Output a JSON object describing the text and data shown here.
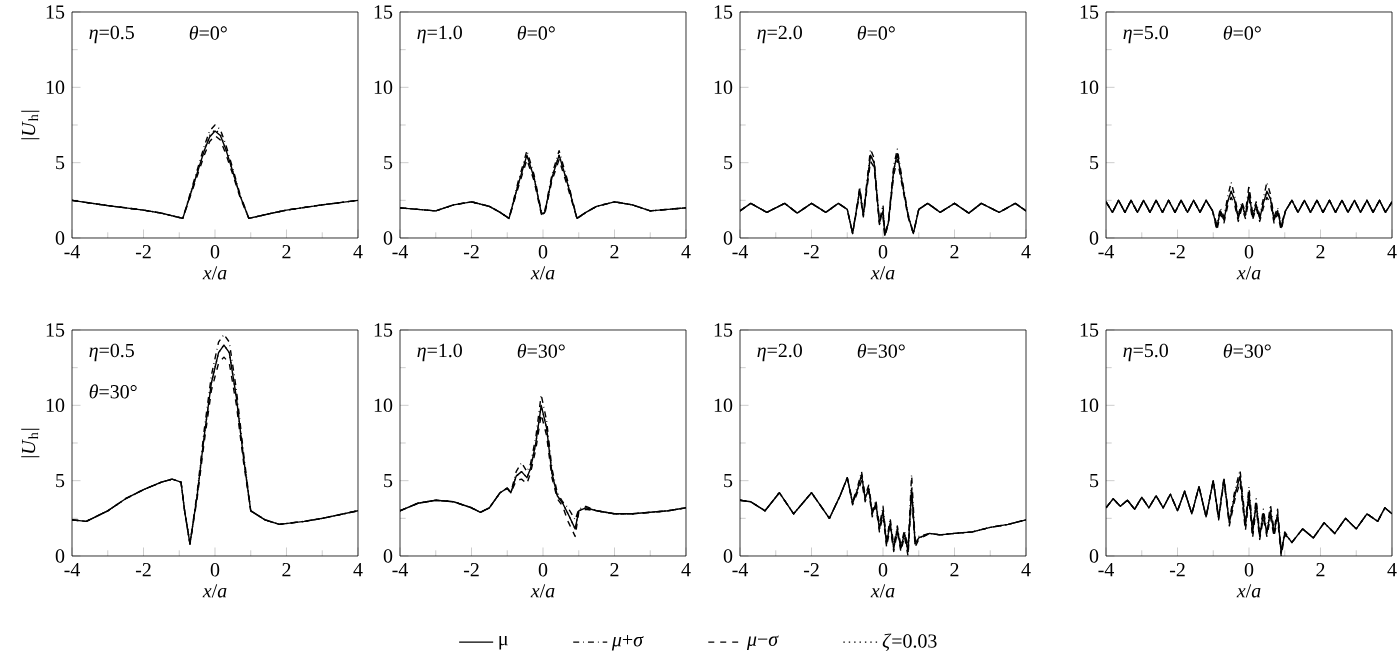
{
  "chart_data": [
    {
      "type": "line",
      "annotations": [
        "*η*=0.5",
        "*θ*=0°"
      ],
      "xlabel": "*x*/*a*",
      "ylabel": "|*U*$_{h}$|",
      "xlim": [
        -4,
        4
      ],
      "ylim": [
        0,
        15
      ],
      "xticks": [
        -4,
        -2,
        0,
        2,
        4
      ],
      "yticks": [
        0,
        5,
        10,
        15
      ],
      "x": [
        -4,
        -3,
        -2,
        -1.5,
        -0.9,
        -0.7,
        -0.5,
        -0.3,
        -0.15,
        0,
        0.15,
        0.3,
        0.5,
        0.7,
        0.95,
        1.5,
        2,
        3,
        4
      ],
      "series": [
        {
          "color": "#000000",
          "line_style": "solid",
          "values": [
            2.5,
            2.15,
            1.85,
            1.65,
            1.3,
            2.8,
            4.3,
            5.8,
            6.7,
            7.1,
            6.8,
            5.9,
            4.4,
            2.8,
            1.3,
            1.6,
            1.85,
            2.2,
            2.5
          ]
        },
        {
          "color": "#000000",
          "line_style": "dashdot",
          "values": [
            2.5,
            2.15,
            1.85,
            1.65,
            1.3,
            2.9,
            4.5,
            6.1,
            7.1,
            7.5,
            7.2,
            6.2,
            4.6,
            2.9,
            1.3,
            1.6,
            1.85,
            2.2,
            2.5
          ]
        },
        {
          "color": "#000000",
          "line_style": "dashed",
          "values": [
            2.5,
            2.15,
            1.85,
            1.65,
            1.3,
            2.7,
            4.1,
            5.5,
            6.4,
            6.8,
            6.5,
            5.6,
            4.2,
            2.7,
            1.3,
            1.6,
            1.85,
            2.2,
            2.5
          ]
        },
        {
          "color": "#000000",
          "line_style": "dotted",
          "values": [
            2.5,
            2.15,
            1.85,
            1.65,
            1.3,
            2.8,
            4.3,
            5.8,
            6.8,
            7.2,
            6.9,
            5.9,
            4.4,
            2.8,
            1.3,
            1.6,
            1.85,
            2.2,
            2.5
          ]
        }
      ]
    },
    {
      "type": "line",
      "annotations": [
        "*η*=1.0",
        "*θ*=0°"
      ],
      "xlabel": "*x*/*a*",
      "xlim": [
        -4,
        4
      ],
      "ylim": [
        0,
        15
      ],
      "xticks": [
        -4,
        -2,
        0,
        2,
        4
      ],
      "yticks": [
        0,
        5,
        10,
        15
      ],
      "x": [
        -4,
        -3.5,
        -3,
        -2.5,
        -2,
        -1.5,
        -1.2,
        -0.95,
        -0.7,
        -0.45,
        -0.25,
        -0.05,
        0,
        0.05,
        0.25,
        0.45,
        0.7,
        0.95,
        1.2,
        1.5,
        2,
        2.5,
        3,
        3.5,
        4
      ],
      "series": [
        {
          "color": "#000000",
          "line_style": "solid",
          "values": [
            2.0,
            1.9,
            1.8,
            2.2,
            2.4,
            2.1,
            1.7,
            1.3,
            3.5,
            5.5,
            4.0,
            1.7,
            1.6,
            1.7,
            4.0,
            5.5,
            3.5,
            1.3,
            1.7,
            2.1,
            2.4,
            2.2,
            1.8,
            1.9,
            2.0
          ]
        },
        {
          "color": "#000000",
          "line_style": "dashdot",
          "values": [
            2.0,
            1.9,
            1.8,
            2.2,
            2.4,
            2.1,
            1.7,
            1.3,
            3.7,
            5.8,
            4.2,
            1.8,
            1.7,
            1.8,
            4.2,
            5.8,
            3.7,
            1.3,
            1.7,
            2.1,
            2.4,
            2.2,
            1.8,
            1.9,
            2.0
          ]
        },
        {
          "color": "#000000",
          "line_style": "dashed",
          "values": [
            2.0,
            1.9,
            1.8,
            2.2,
            2.4,
            2.1,
            1.7,
            1.3,
            3.3,
            5.2,
            3.8,
            1.6,
            1.5,
            1.6,
            3.8,
            5.2,
            3.3,
            1.3,
            1.7,
            2.1,
            2.4,
            2.2,
            1.8,
            1.9,
            2.0
          ]
        },
        {
          "color": "#000000",
          "line_style": "dotted",
          "values": [
            2.0,
            1.9,
            1.8,
            2.2,
            2.4,
            2.1,
            1.7,
            1.3,
            3.5,
            5.5,
            4.0,
            1.7,
            1.6,
            1.7,
            4.0,
            5.5,
            3.5,
            1.3,
            1.7,
            2.1,
            2.4,
            2.2,
            1.8,
            1.9,
            2.0
          ]
        }
      ]
    },
    {
      "type": "line",
      "annotations": [
        "*η*=2.0",
        "*θ*=0°"
      ],
      "xlabel": "*x*/*a*",
      "xlim": [
        -4,
        4
      ],
      "ylim": [
        0,
        15
      ],
      "xticks": [
        -4,
        -2,
        0,
        2,
        4
      ],
      "yticks": [
        0,
        5,
        10,
        15
      ],
      "x": [
        -4,
        -3.7,
        -3.25,
        -2.75,
        -2.4,
        -2,
        -1.6,
        -1.25,
        -1,
        -0.85,
        -0.65,
        -0.55,
        -0.35,
        -0.25,
        -0.1,
        0,
        0.05,
        0.15,
        0.3,
        0.4,
        0.55,
        0.7,
        0.85,
        1,
        1.25,
        1.6,
        2,
        2.4,
        2.75,
        3.25,
        3.7,
        4
      ],
      "series": [
        {
          "color": "#000000",
          "line_style": "solid",
          "values": [
            1.8,
            2.3,
            1.7,
            2.3,
            1.65,
            2.3,
            1.7,
            2.3,
            1.9,
            0.3,
            3.2,
            1.5,
            5.5,
            5.0,
            1.0,
            1.8,
            0.2,
            1.0,
            4.5,
            5.6,
            3.5,
            1.5,
            0.3,
            1.9,
            2.3,
            1.7,
            2.3,
            1.65,
            2.3,
            1.7,
            2.3,
            1.8
          ]
        },
        {
          "color": "#000000",
          "line_style": "dashdot",
          "values": [
            1.8,
            2.3,
            1.7,
            2.3,
            1.65,
            2.3,
            1.7,
            2.3,
            1.9,
            0.3,
            3.4,
            1.6,
            5.9,
            5.3,
            1.1,
            2.2,
            0.3,
            1.1,
            4.8,
            5.9,
            3.7,
            1.6,
            0.3,
            1.9,
            2.3,
            1.7,
            2.3,
            1.65,
            2.3,
            1.7,
            2.3,
            1.8
          ]
        },
        {
          "color": "#000000",
          "line_style": "dashed",
          "values": [
            1.8,
            2.3,
            1.7,
            2.3,
            1.65,
            2.3,
            1.7,
            2.3,
            1.9,
            0.3,
            3.0,
            1.4,
            5.1,
            4.7,
            0.9,
            1.4,
            0.1,
            0.9,
            4.2,
            5.2,
            3.3,
            1.4,
            0.3,
            1.9,
            2.3,
            1.7,
            2.3,
            1.65,
            2.3,
            1.7,
            2.3,
            1.8
          ]
        },
        {
          "color": "#000000",
          "line_style": "dotted",
          "values": [
            1.8,
            2.3,
            1.7,
            2.3,
            1.65,
            2.3,
            1.7,
            2.3,
            1.9,
            0.3,
            3.2,
            1.5,
            5.5,
            5.0,
            1.0,
            1.8,
            0.2,
            1.0,
            4.5,
            5.6,
            3.5,
            1.5,
            0.3,
            1.9,
            2.3,
            1.7,
            2.3,
            1.65,
            2.3,
            1.7,
            2.3,
            1.8
          ]
        }
      ]
    },
    {
      "type": "line",
      "annotations": [
        "*η*=5.0",
        "*θ*=0°"
      ],
      "xlabel": "*x*/*a*",
      "xlim": [
        -4,
        4
      ],
      "ylim": [
        0,
        15
      ],
      "xticks": [
        -4,
        -2,
        0,
        2,
        4
      ],
      "yticks": [
        0,
        5,
        10,
        15
      ],
      "x": [
        -4,
        -3.82,
        -3.65,
        -3.47,
        -3.3,
        -3.12,
        -2.95,
        -2.77,
        -2.6,
        -2.42,
        -2.25,
        -2.07,
        -1.9,
        -1.72,
        -1.55,
        -1.37,
        -1.2,
        -1.02,
        -0.9,
        -0.8,
        -0.7,
        -0.6,
        -0.5,
        -0.4,
        -0.3,
        -0.2,
        -0.1,
        0,
        0.1,
        0.2,
        0.3,
        0.4,
        0.5,
        0.6,
        0.7,
        0.8,
        0.9,
        1.02,
        1.2,
        1.37,
        1.55,
        1.72,
        1.9,
        2.07,
        2.25,
        2.42,
        2.6,
        2.77,
        2.95,
        3.12,
        3.3,
        3.47,
        3.65,
        3.82,
        4
      ],
      "series": [
        {
          "color": "#000000",
          "line_style": "solid",
          "values": [
            2.4,
            1.7,
            2.5,
            1.7,
            2.5,
            1.7,
            2.5,
            1.7,
            2.5,
            1.7,
            2.5,
            1.7,
            2.5,
            1.7,
            2.5,
            1.7,
            2.5,
            1.8,
            0.7,
            1.8,
            1.2,
            2.4,
            3.1,
            2.5,
            1.3,
            2.2,
            1.5,
            3.0,
            1.4,
            2.2,
            1.3,
            2.3,
            3.1,
            2.6,
            1.2,
            1.8,
            0.7,
            1.8,
            2.5,
            1.7,
            2.5,
            1.7,
            2.5,
            1.7,
            2.5,
            1.7,
            2.5,
            1.7,
            2.5,
            1.7,
            2.5,
            1.7,
            2.5,
            1.7,
            2.4
          ]
        },
        {
          "color": "#000000",
          "line_style": "dashdot",
          "values": [
            2.4,
            1.7,
            2.5,
            1.7,
            2.5,
            1.7,
            2.5,
            1.7,
            2.5,
            1.7,
            2.5,
            1.7,
            2.5,
            1.7,
            2.5,
            1.7,
            2.5,
            1.8,
            0.9,
            2.0,
            1.4,
            2.7,
            3.7,
            2.8,
            1.5,
            2.4,
            1.7,
            3.5,
            1.6,
            2.4,
            1.5,
            2.6,
            3.7,
            2.9,
            1.4,
            2.0,
            0.9,
            1.8,
            2.5,
            1.7,
            2.5,
            1.7,
            2.5,
            1.7,
            2.5,
            1.7,
            2.5,
            1.7,
            2.5,
            1.7,
            2.5,
            1.7,
            2.5,
            1.7,
            2.4
          ]
        },
        {
          "color": "#000000",
          "line_style": "dashed",
          "values": [
            2.4,
            1.7,
            2.5,
            1.7,
            2.5,
            1.7,
            2.5,
            1.7,
            2.5,
            1.7,
            2.5,
            1.7,
            2.5,
            1.7,
            2.5,
            1.7,
            2.5,
            1.8,
            0.5,
            1.6,
            1.0,
            2.1,
            2.7,
            2.2,
            1.1,
            2.0,
            1.3,
            2.6,
            1.2,
            2.0,
            1.1,
            2.0,
            2.7,
            2.3,
            1.0,
            1.6,
            0.5,
            1.8,
            2.5,
            1.7,
            2.5,
            1.7,
            2.5,
            1.7,
            2.5,
            1.7,
            2.5,
            1.7,
            2.5,
            1.7,
            2.5,
            1.7,
            2.5,
            1.7,
            2.4
          ]
        },
        {
          "color": "#000000",
          "line_style": "dotted",
          "values": [
            2.4,
            1.7,
            2.5,
            1.7,
            2.5,
            1.7,
            2.5,
            1.7,
            2.5,
            1.7,
            2.5,
            1.7,
            2.5,
            1.7,
            2.5,
            1.7,
            2.5,
            1.8,
            0.7,
            1.8,
            1.2,
            2.4,
            3.1,
            2.5,
            1.3,
            2.2,
            1.5,
            3.0,
            1.4,
            2.2,
            1.3,
            2.3,
            3.1,
            2.6,
            1.2,
            1.8,
            0.7,
            1.8,
            2.5,
            1.7,
            2.5,
            1.7,
            2.5,
            1.7,
            2.5,
            1.7,
            2.5,
            1.7,
            2.5,
            1.7,
            2.5,
            1.7,
            2.5,
            1.7,
            2.4
          ]
        }
      ]
    },
    {
      "type": "line",
      "annotations": [
        "*η*=0.5",
        "*θ*=30°"
      ],
      "xlabel": "*x*/*a*",
      "ylabel": "|*U*$_{h}$|",
      "xlim": [
        -4,
        4
      ],
      "ylim": [
        0,
        15
      ],
      "xticks": [
        -4,
        -2,
        0,
        2,
        4
      ],
      "yticks": [
        0,
        5,
        10,
        15
      ],
      "x": [
        -4,
        -3.6,
        -3,
        -2.5,
        -2,
        -1.5,
        -1.2,
        -0.95,
        -0.85,
        -0.7,
        -0.5,
        -0.3,
        -0.1,
        0.1,
        0.25,
        0.4,
        0.6,
        0.8,
        1,
        1.4,
        1.8,
        2.5,
        3,
        3.5,
        4
      ],
      "series": [
        {
          "color": "#000000",
          "line_style": "solid",
          "values": [
            2.4,
            2.3,
            3.0,
            3.8,
            4.4,
            4.9,
            5.1,
            4.9,
            3.0,
            0.8,
            4.0,
            8.0,
            11.5,
            13.5,
            14.0,
            13.5,
            10.5,
            6.5,
            3.0,
            2.4,
            2.1,
            2.3,
            2.5,
            2.75,
            3.0
          ]
        },
        {
          "color": "#000000",
          "line_style": "dashdot",
          "values": [
            2.4,
            2.3,
            3.0,
            3.8,
            4.4,
            4.9,
            5.1,
            4.9,
            3.0,
            0.8,
            4.2,
            8.4,
            12.0,
            14.2,
            14.7,
            14.2,
            11.0,
            6.8,
            3.0,
            2.4,
            2.1,
            2.3,
            2.5,
            2.75,
            3.0
          ]
        },
        {
          "color": "#000000",
          "line_style": "dashed",
          "values": [
            2.4,
            2.3,
            3.0,
            3.8,
            4.4,
            4.9,
            5.1,
            4.9,
            3.0,
            0.8,
            3.8,
            7.6,
            11.0,
            12.8,
            13.2,
            12.8,
            10.0,
            6.2,
            3.0,
            2.4,
            2.1,
            2.3,
            2.5,
            2.75,
            3.0
          ]
        },
        {
          "color": "#000000",
          "line_style": "dotted",
          "values": [
            2.4,
            2.3,
            3.0,
            3.8,
            4.4,
            4.9,
            5.1,
            4.9,
            3.0,
            0.8,
            4.0,
            8.0,
            11.5,
            13.5,
            14.0,
            13.5,
            10.5,
            6.5,
            3.0,
            2.4,
            2.1,
            2.3,
            2.5,
            2.75,
            3.0
          ]
        }
      ]
    },
    {
      "type": "line",
      "annotations": [
        "*η*=1.0",
        "*θ*=30°"
      ],
      "xlabel": "*x*/*a*",
      "xlim": [
        -4,
        4
      ],
      "ylim": [
        0,
        15
      ],
      "xticks": [
        -4,
        -2,
        0,
        2,
        4
      ],
      "yticks": [
        0,
        5,
        10,
        15
      ],
      "x": [
        -4,
        -3.5,
        -3,
        -2.5,
        -2,
        -1.75,
        -1.5,
        -1.2,
        -1,
        -0.9,
        -0.75,
        -0.6,
        -0.45,
        -0.35,
        -0.2,
        -0.05,
        0.1,
        0.25,
        0.4,
        0.55,
        0.7,
        0.9,
        1,
        1.2,
        1.5,
        2,
        2.5,
        3,
        3.5,
        4
      ],
      "series": [
        {
          "color": "#000000",
          "line_style": "solid",
          "values": [
            3.0,
            3.5,
            3.7,
            3.6,
            3.2,
            2.9,
            3.2,
            4.2,
            4.5,
            4.2,
            5.3,
            5.6,
            5.2,
            5.8,
            7.5,
            10.0,
            8.5,
            5.5,
            4.0,
            3.5,
            2.8,
            1.8,
            3.0,
            3.2,
            3.0,
            2.8,
            2.8,
            2.9,
            3.0,
            3.2
          ]
        },
        {
          "color": "#000000",
          "line_style": "dashdot",
          "values": [
            3.0,
            3.5,
            3.7,
            3.6,
            3.2,
            2.9,
            3.2,
            4.2,
            4.5,
            4.2,
            5.6,
            6.2,
            5.6,
            6.1,
            7.9,
            10.7,
            9.0,
            5.8,
            4.2,
            3.6,
            3.2,
            2.4,
            3.1,
            3.3,
            3.0,
            2.8,
            2.8,
            2.9,
            3.0,
            3.2
          ]
        },
        {
          "color": "#000000",
          "line_style": "dashed",
          "values": [
            3.0,
            3.5,
            3.7,
            3.6,
            3.2,
            2.9,
            3.2,
            4.2,
            4.5,
            4.2,
            5.0,
            5.1,
            4.8,
            5.5,
            7.1,
            9.4,
            8.0,
            5.2,
            3.8,
            3.3,
            2.3,
            1.3,
            2.9,
            3.1,
            3.0,
            2.8,
            2.8,
            2.9,
            3.0,
            3.2
          ]
        },
        {
          "color": "#000000",
          "line_style": "dotted",
          "values": [
            3.0,
            3.5,
            3.7,
            3.6,
            3.2,
            2.9,
            3.2,
            4.2,
            4.5,
            4.2,
            5.3,
            5.6,
            5.2,
            5.8,
            7.5,
            10.0,
            8.5,
            5.5,
            4.0,
            3.5,
            2.8,
            1.8,
            3.0,
            3.2,
            3.0,
            2.8,
            2.8,
            2.9,
            3.0,
            3.2
          ]
        }
      ]
    },
    {
      "type": "line",
      "annotations": [
        "*η*=2.0",
        "*θ*=30°"
      ],
      "xlabel": "*x*/*a*",
      "xlim": [
        -4,
        4
      ],
      "ylim": [
        0,
        15
      ],
      "xticks": [
        -4,
        -2,
        0,
        2,
        4
      ],
      "yticks": [
        0,
        5,
        10,
        15
      ],
      "x": [
        -4,
        -3.7,
        -3.3,
        -2.9,
        -2.5,
        -2,
        -1.5,
        -1.2,
        -1,
        -0.85,
        -0.7,
        -0.6,
        -0.5,
        -0.4,
        -0.3,
        -0.2,
        -0.1,
        0,
        0.1,
        0.2,
        0.3,
        0.4,
        0.5,
        0.6,
        0.7,
        0.8,
        0.9,
        1,
        1.3,
        1.6,
        2,
        2.5,
        3,
        3.5,
        4
      ],
      "series": [
        {
          "color": "#000000",
          "line_style": "solid",
          "values": [
            3.7,
            3.6,
            3.0,
            4.2,
            2.8,
            4.2,
            2.5,
            4.0,
            5.2,
            3.5,
            4.5,
            5.4,
            3.8,
            4.5,
            2.8,
            3.5,
            1.8,
            3.0,
            0.8,
            2.2,
            0.5,
            1.8,
            0.5,
            1.5,
            0.3,
            4.5,
            0.8,
            1.2,
            1.5,
            1.4,
            1.5,
            1.6,
            1.9,
            2.1,
            2.4
          ]
        },
        {
          "color": "#000000",
          "line_style": "dashdot",
          "values": [
            3.7,
            3.6,
            3.0,
            4.2,
            2.8,
            4.2,
            2.5,
            4.0,
            5.2,
            3.6,
            4.7,
            5.6,
            4.0,
            4.7,
            3.0,
            3.7,
            2.0,
            3.3,
            1.0,
            2.5,
            0.7,
            2.0,
            0.7,
            1.7,
            0.5,
            5.4,
            1.0,
            1.3,
            1.5,
            1.4,
            1.5,
            1.6,
            1.9,
            2.1,
            2.4
          ]
        },
        {
          "color": "#000000",
          "line_style": "dashed",
          "values": [
            3.7,
            3.6,
            3.0,
            4.2,
            2.8,
            4.2,
            2.5,
            4.0,
            5.2,
            3.4,
            4.3,
            5.0,
            3.6,
            4.3,
            2.6,
            3.3,
            1.6,
            2.7,
            0.6,
            1.9,
            0.3,
            1.6,
            0.3,
            1.3,
            0.0,
            4.0,
            0.6,
            1.1,
            1.5,
            1.4,
            1.5,
            1.6,
            1.9,
            2.1,
            2.4
          ]
        },
        {
          "color": "#000000",
          "line_style": "dotted",
          "values": [
            3.7,
            3.6,
            3.0,
            4.2,
            2.8,
            4.2,
            2.5,
            4.0,
            5.2,
            3.5,
            4.5,
            5.4,
            3.8,
            4.5,
            2.8,
            3.5,
            1.8,
            3.0,
            0.8,
            2.2,
            0.5,
            1.8,
            0.5,
            1.5,
            0.3,
            4.5,
            0.8,
            1.2,
            1.5,
            1.4,
            1.5,
            1.6,
            1.9,
            2.1,
            2.4
          ]
        }
      ]
    },
    {
      "type": "line",
      "annotations": [
        "*η*=5.0",
        "*θ*=30°"
      ],
      "xlabel": "*x*/*a*",
      "xlim": [
        -4,
        4
      ],
      "ylim": [
        0,
        15
      ],
      "xticks": [
        -4,
        -2,
        0,
        2,
        4
      ],
      "yticks": [
        0,
        5,
        10,
        15
      ],
      "legend": "bottom",
      "x": [
        -4,
        -3.8,
        -3.6,
        -3.4,
        -3.2,
        -3,
        -2.8,
        -2.6,
        -2.4,
        -2.2,
        -2,
        -1.8,
        -1.6,
        -1.4,
        -1.2,
        -1,
        -0.85,
        -0.7,
        -0.55,
        -0.4,
        -0.25,
        -0.1,
        0,
        0.1,
        0.2,
        0.3,
        0.4,
        0.5,
        0.6,
        0.7,
        0.8,
        0.9,
        1,
        1.2,
        1.5,
        1.8,
        2.1,
        2.4,
        2.7,
        3,
        3.3,
        3.6,
        3.8,
        4
      ],
      "series": [
        {
          "name": "μ",
          "color": "#000000",
          "line_style": "solid",
          "values": [
            3.2,
            3.8,
            3.3,
            3.7,
            3.1,
            3.9,
            3.2,
            4.0,
            3.2,
            4.1,
            3.0,
            4.3,
            2.8,
            4.6,
            2.6,
            5.0,
            2.5,
            5.1,
            2.2,
            4.0,
            5.3,
            2.0,
            4.2,
            1.5,
            3.5,
            1.3,
            2.8,
            1.5,
            3.0,
            1.5,
            2.8,
            0.2,
            1.5,
            0.9,
            1.8,
            1.2,
            2.2,
            1.5,
            2.5,
            1.8,
            2.8,
            2.3,
            3.2,
            2.8
          ]
        },
        {
          "name": "*μ*+*σ*",
          "color": "#000000",
          "line_style": "dashdot",
          "values": [
            3.2,
            3.8,
            3.3,
            3.7,
            3.1,
            3.9,
            3.2,
            4.0,
            3.2,
            4.1,
            3.0,
            4.3,
            2.8,
            4.6,
            2.6,
            5.0,
            2.6,
            5.2,
            2.4,
            4.3,
            5.7,
            2.3,
            4.6,
            1.8,
            3.8,
            1.5,
            3.1,
            1.7,
            3.4,
            1.7,
            3.1,
            0.4,
            1.6,
            0.9,
            1.8,
            1.2,
            2.2,
            1.5,
            2.5,
            1.8,
            2.8,
            2.3,
            3.2,
            2.8
          ]
        },
        {
          "name": "*μ*−*σ*",
          "color": "#000000",
          "line_style": "dashed",
          "values": [
            3.2,
            3.8,
            3.3,
            3.7,
            3.1,
            3.9,
            3.2,
            4.0,
            3.2,
            4.1,
            3.0,
            4.3,
            2.8,
            4.6,
            2.6,
            5.0,
            2.4,
            5.0,
            2.0,
            3.7,
            4.9,
            1.7,
            3.8,
            1.2,
            3.2,
            1.1,
            2.5,
            1.3,
            2.6,
            1.3,
            2.5,
            0.0,
            1.4,
            0.9,
            1.8,
            1.2,
            2.2,
            1.5,
            2.5,
            1.8,
            2.8,
            2.3,
            3.2,
            2.8
          ]
        },
        {
          "name": "*ζ*=0.03",
          "color": "#000000",
          "line_style": "dotted",
          "values": [
            3.2,
            3.8,
            3.3,
            3.7,
            3.1,
            3.9,
            3.2,
            4.0,
            3.2,
            4.1,
            3.0,
            4.3,
            2.8,
            4.6,
            2.6,
            5.0,
            2.5,
            5.1,
            2.2,
            4.0,
            5.3,
            2.0,
            4.2,
            1.5,
            3.5,
            1.3,
            2.8,
            1.5,
            3.0,
            1.5,
            2.8,
            0.2,
            1.5,
            0.9,
            1.8,
            1.2,
            2.2,
            1.5,
            2.5,
            1.8,
            2.8,
            2.3,
            3.2,
            2.8
          ]
        }
      ]
    }
  ]
}
